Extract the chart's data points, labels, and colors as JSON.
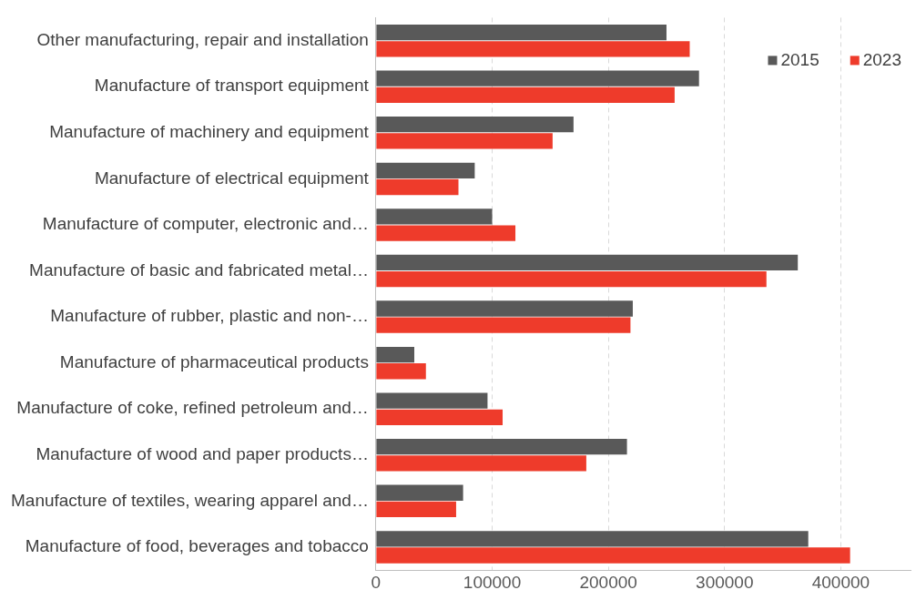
{
  "chart_data": {
    "type": "bar",
    "orientation": "horizontal",
    "categories": [
      "Other manufacturing, repair and installation",
      "Manufacture of transport equipment",
      "Manufacture of machinery and equipment",
      "Manufacture of electrical equipment",
      "Manufacture of computer, electronic and…",
      "Manufacture of basic and fabricated metal…",
      "Manufacture of rubber, plastic and non-…",
      "Manufacture of pharmaceutical products",
      "Manufacture of coke, refined petroleum and…",
      "Manufacture of wood and paper products…",
      "Manufacture of textiles, wearing apparel and…",
      "Manufacture of food, beverages and tobacco"
    ],
    "series": [
      {
        "name": "2015",
        "color": "#595959",
        "values": [
          250000,
          278000,
          170000,
          85000,
          100000,
          363000,
          221000,
          33000,
          96000,
          216000,
          75000,
          372000
        ]
      },
      {
        "name": "2023",
        "color": "#ee3b2b",
        "values": [
          270000,
          257000,
          152000,
          71000,
          120000,
          336000,
          219000,
          43000,
          109000,
          181000,
          69000,
          408000
        ]
      }
    ],
    "xlim": [
      0,
      460000
    ],
    "xticks": [
      0,
      100000,
      200000,
      300000,
      400000
    ],
    "grid": "x",
    "legend": "top right"
  }
}
